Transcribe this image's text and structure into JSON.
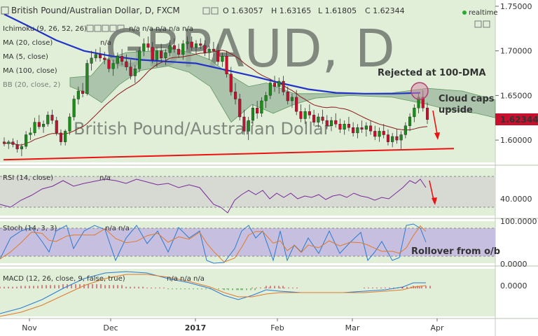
{
  "header": {
    "title": "British Pound/Australian Dollar, D, FXCM",
    "ohlc": {
      "open": "O 1.63057",
      "high": "H 1.63165",
      "low": "L 1.61805",
      "close": "C 1.62344"
    },
    "realtime_label": "realtime"
  },
  "indicators": {
    "ichimoku": {
      "label": "Ichimoku (9, 26, 52, 26)",
      "values": [
        "n/a",
        "n/a",
        "n/a",
        "n/a",
        "n/a"
      ]
    },
    "ma20": {
      "label": "MA (20, close)",
      "value": "n/a"
    },
    "ma5": {
      "label": "MA (5, close)",
      "value": "n/a"
    },
    "ma100": {
      "label": "MA (100, close)",
      "value": "n/a"
    },
    "bb": {
      "label": "BB (20, close, 2)"
    }
  },
  "annotations": {
    "rejected": "Rejected at 100-DMA",
    "cloud": "Cloud caps\nupside",
    "rollover": "Rollover from o/b"
  },
  "watermark": {
    "symbol": "GBPAUD, D",
    "name": "British Pound/Australian Dollar"
  },
  "price_tag": "1.62344",
  "panes": {
    "rsi": {
      "label": "RSI (14, close)",
      "value": "n/a",
      "tick": "40.0000"
    },
    "stoch": {
      "label": "Stoch (14, 3, 3)",
      "value": "n/a n/a",
      "ticks": [
        "100.0000",
        "0.0000"
      ]
    },
    "macd": {
      "label": "MACD (12, 26, close, 9, false, true)",
      "values": "n/a n/a n/a",
      "tick": "0.0000"
    }
  },
  "colors": {
    "bull": "#1e8a1e",
    "bear": "#c8102e",
    "ma100": "#2233c8",
    "ma20": "#8b1a1a",
    "cloud": "#9fb9a0",
    "background": "#e1efd9",
    "trendline": "#ee1111"
  },
  "chart_data": {
    "type": "candlestick",
    "symbol": "GBPAUD",
    "timeframe": "D",
    "x_labels": [
      "Nov",
      "Dec",
      "2017",
      "Feb",
      "Mar",
      "Apr"
    ],
    "y_ticks": [
      1.6,
      1.65,
      1.7,
      1.75
    ],
    "ylim": [
      1.575,
      1.757
    ],
    "last_close": 1.62344,
    "candles_approx": [
      [
        1.598,
        1.603,
        1.593,
        1.596
      ],
      [
        1.596,
        1.6,
        1.59,
        1.598
      ],
      [
        1.598,
        1.602,
        1.592,
        1.595
      ],
      [
        1.595,
        1.6,
        1.586,
        1.59
      ],
      [
        1.59,
        1.596,
        1.582,
        1.593
      ],
      [
        1.593,
        1.61,
        1.59,
        1.606
      ],
      [
        1.606,
        1.614,
        1.6,
        1.608
      ],
      [
        1.608,
        1.625,
        1.605,
        1.62
      ],
      [
        1.62,
        1.628,
        1.612,
        1.615
      ],
      [
        1.615,
        1.622,
        1.608,
        1.618
      ],
      [
        1.618,
        1.632,
        1.615,
        1.628
      ],
      [
        1.628,
        1.634,
        1.618,
        1.622
      ],
      [
        1.622,
        1.626,
        1.605,
        1.608
      ],
      [
        1.608,
        1.612,
        1.594,
        1.598
      ],
      [
        1.598,
        1.612,
        1.594,
        1.61
      ],
      [
        1.61,
        1.63,
        1.606,
        1.626
      ],
      [
        1.626,
        1.65,
        1.622,
        1.646
      ],
      [
        1.646,
        1.66,
        1.64,
        1.655
      ],
      [
        1.655,
        1.664,
        1.648,
        1.652
      ],
      [
        1.652,
        1.69,
        1.65,
        1.686
      ],
      [
        1.686,
        1.7,
        1.678,
        1.692
      ],
      [
        1.692,
        1.702,
        1.688,
        1.696
      ],
      [
        1.696,
        1.704,
        1.688,
        1.692
      ],
      [
        1.692,
        1.699,
        1.685,
        1.69
      ],
      [
        1.69,
        1.696,
        1.676,
        1.68
      ],
      [
        1.68,
        1.69,
        1.672,
        1.686
      ],
      [
        1.686,
        1.698,
        1.68,
        1.694
      ],
      [
        1.694,
        1.702,
        1.684,
        1.688
      ],
      [
        1.688,
        1.696,
        1.678,
        1.682
      ],
      [
        1.682,
        1.69,
        1.668,
        1.672
      ],
      [
        1.672,
        1.684,
        1.664,
        1.68
      ],
      [
        1.68,
        1.704,
        1.676,
        1.7
      ],
      [
        1.7,
        1.714,
        1.694,
        1.708
      ],
      [
        1.708,
        1.716,
        1.7,
        1.704
      ],
      [
        1.704,
        1.71,
        1.686,
        1.69
      ],
      [
        1.69,
        1.704,
        1.682,
        1.7
      ],
      [
        1.7,
        1.708,
        1.688,
        1.692
      ],
      [
        1.692,
        1.702,
        1.684,
        1.698
      ],
      [
        1.698,
        1.712,
        1.694,
        1.706
      ],
      [
        1.706,
        1.714,
        1.698,
        1.702
      ],
      [
        1.702,
        1.708,
        1.692,
        1.696
      ],
      [
        1.696,
        1.712,
        1.69,
        1.708
      ],
      [
        1.708,
        1.716,
        1.702,
        1.71
      ],
      [
        1.71,
        1.716,
        1.7,
        1.704
      ],
      [
        1.704,
        1.712,
        1.696,
        1.708
      ],
      [
        1.708,
        1.714,
        1.702,
        1.706
      ],
      [
        1.706,
        1.712,
        1.694,
        1.698
      ],
      [
        1.698,
        1.706,
        1.69,
        1.702
      ],
      [
        1.702,
        1.71,
        1.694,
        1.7
      ],
      [
        1.7,
        1.708,
        1.684,
        1.688
      ],
      [
        1.688,
        1.698,
        1.682,
        1.694
      ],
      [
        1.694,
        1.7,
        1.67,
        1.674
      ],
      [
        1.674,
        1.682,
        1.65,
        1.654
      ],
      [
        1.654,
        1.664,
        1.64,
        1.646
      ],
      [
        1.646,
        1.652,
        1.622,
        1.626
      ],
      [
        1.626,
        1.634,
        1.606,
        1.61
      ],
      [
        1.61,
        1.626,
        1.6,
        1.622
      ],
      [
        1.622,
        1.64,
        1.616,
        1.636
      ],
      [
        1.636,
        1.644,
        1.624,
        1.63
      ],
      [
        1.63,
        1.648,
        1.626,
        1.644
      ],
      [
        1.644,
        1.654,
        1.636,
        1.65
      ],
      [
        1.65,
        1.668,
        1.646,
        1.664
      ],
      [
        1.664,
        1.672,
        1.654,
        1.66
      ],
      [
        1.66,
        1.67,
        1.652,
        1.666
      ],
      [
        1.666,
        1.672,
        1.65,
        1.654
      ],
      [
        1.654,
        1.66,
        1.64,
        1.644
      ],
      [
        1.644,
        1.652,
        1.636,
        1.648
      ],
      [
        1.648,
        1.656,
        1.628,
        1.632
      ],
      [
        1.632,
        1.64,
        1.62,
        1.624
      ],
      [
        1.624,
        1.636,
        1.618,
        1.632
      ],
      [
        1.632,
        1.64,
        1.624,
        1.628
      ],
      [
        1.628,
        1.634,
        1.616,
        1.62
      ],
      [
        1.62,
        1.63,
        1.614,
        1.626
      ],
      [
        1.626,
        1.634,
        1.618,
        1.622
      ],
      [
        1.622,
        1.628,
        1.612,
        1.616
      ],
      [
        1.616,
        1.626,
        1.61,
        1.622
      ],
      [
        1.622,
        1.63,
        1.614,
        1.618
      ],
      [
        1.618,
        1.624,
        1.608,
        1.612
      ],
      [
        1.612,
        1.622,
        1.606,
        1.618
      ],
      [
        1.618,
        1.626,
        1.61,
        1.614
      ],
      [
        1.614,
        1.62,
        1.604,
        1.608
      ],
      [
        1.608,
        1.618,
        1.602,
        1.614
      ],
      [
        1.614,
        1.622,
        1.608,
        1.612
      ],
      [
        1.612,
        1.62,
        1.604,
        1.616
      ],
      [
        1.616,
        1.622,
        1.606,
        1.61
      ],
      [
        1.61,
        1.616,
        1.6,
        1.604
      ],
      [
        1.604,
        1.614,
        1.598,
        1.61
      ],
      [
        1.61,
        1.618,
        1.602,
        1.606
      ],
      [
        1.606,
        1.612,
        1.594,
        1.598
      ],
      [
        1.598,
        1.608,
        1.592,
        1.604
      ],
      [
        1.604,
        1.612,
        1.596,
        1.6
      ],
      [
        1.6,
        1.61,
        1.59,
        1.606
      ],
      [
        1.606,
        1.62,
        1.602,
        1.616
      ],
      [
        1.616,
        1.63,
        1.61,
        1.626
      ],
      [
        1.626,
        1.64,
        1.62,
        1.636
      ],
      [
        1.636,
        1.652,
        1.63,
        1.648
      ],
      [
        1.648,
        1.656,
        1.632,
        1.636
      ],
      [
        1.636,
        1.642,
        1.618,
        1.623
      ]
    ],
    "trendline": {
      "from": [
        1.578,
        0
      ],
      "to": [
        1.589,
        97
      ]
    },
    "rsi": {
      "ylim": [
        20,
        80
      ],
      "ticks": [
        40
      ]
    },
    "stoch": {
      "ylim": [
        0,
        100
      ],
      "ticks": [
        0,
        100
      ]
    },
    "macd": {
      "ticks": [
        0
      ]
    }
  }
}
